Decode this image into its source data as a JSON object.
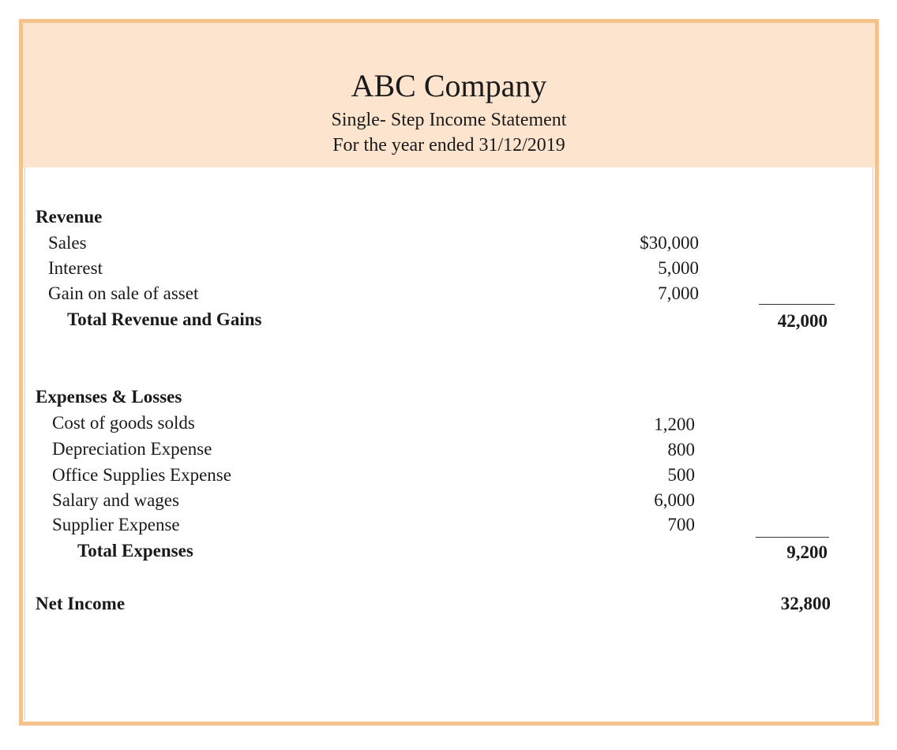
{
  "header": {
    "company": "ABC Company",
    "statement_type": "Single- Step Income Statement",
    "period": "For the year ended 31/12/2019"
  },
  "revenue": {
    "heading": "Revenue",
    "items": [
      {
        "label": "Sales",
        "amount": "$30,000"
      },
      {
        "label": "Interest",
        "amount": "5,000"
      },
      {
        "label": "Gain on sale of asset",
        "amount": "7,000"
      }
    ],
    "total_label": "Total Revenue and Gains",
    "total": "42,000"
  },
  "expenses": {
    "heading": "Expenses & Losses",
    "items": [
      {
        "label": "Cost of goods solds",
        "amount": "1,200"
      },
      {
        "label": "Depreciation Expense",
        "amount": "800"
      },
      {
        "label": "Office Supplies Expense",
        "amount": "500"
      },
      {
        "label": "Salary and wages",
        "amount": "6,000"
      },
      {
        "label": "Supplier Expense",
        "amount": "700"
      }
    ],
    "total_label": "Total Expenses",
    "total": "9,200"
  },
  "net_income": {
    "label": "Net Income",
    "amount": "32,800"
  },
  "colors": {
    "border": "#f5c28b",
    "header_bg": "#fde4cf"
  }
}
